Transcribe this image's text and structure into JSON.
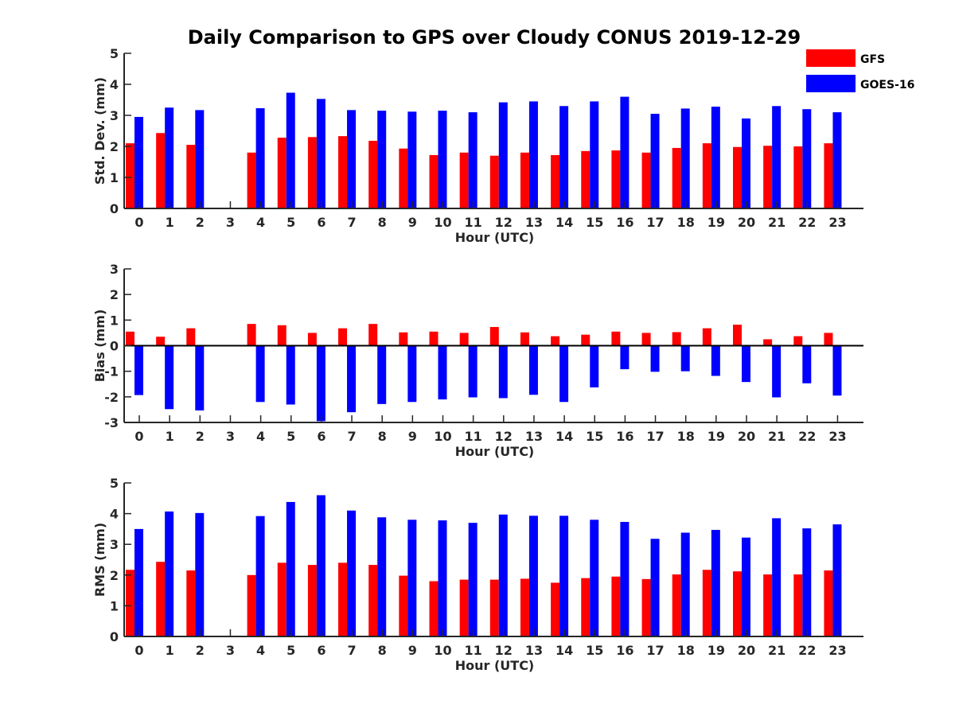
{
  "colors": {
    "gfs": "#ff0000",
    "goes": "#0000ff",
    "axis": "#262626",
    "background": "#ffffff"
  },
  "chart_data": {
    "type": "bar",
    "title": "Daily Comparison to GPS over Cloudy CONUS 2019-12-29",
    "legend": {
      "placement": "top-right",
      "entries": [
        {
          "name": "GFS",
          "color": "#ff0000"
        },
        {
          "name": "GOES-16",
          "color": "#0000ff"
        }
      ]
    },
    "categories": [
      "0",
      "1",
      "2",
      "3",
      "4",
      "5",
      "6",
      "7",
      "8",
      "9",
      "10",
      "11",
      "12",
      "13",
      "14",
      "15",
      "16",
      "17",
      "18",
      "19",
      "20",
      "21",
      "22",
      "23"
    ],
    "panels": [
      {
        "id": "std",
        "xlabel": "Hour (UTC)",
        "ylabel": "Std. Dev. (mm)",
        "ylim": [
          0,
          5
        ],
        "yticks": [
          "0",
          "1",
          "2",
          "3",
          "4",
          "5"
        ],
        "grid": false,
        "series": [
          {
            "name": "GFS",
            "values": [
              2.1,
              2.43,
              2.05,
              null,
              1.8,
              2.28,
              2.3,
              2.33,
              2.18,
              1.93,
              1.72,
              1.8,
              1.7,
              1.8,
              1.72,
              1.85,
              1.87,
              1.8,
              1.95,
              2.1,
              1.98,
              2.02,
              2.0,
              2.1
            ]
          },
          {
            "name": "GOES-16",
            "values": [
              2.95,
              3.25,
              3.17,
              null,
              3.23,
              3.73,
              3.53,
              3.17,
              3.15,
              3.12,
              3.15,
              3.1,
              3.42,
              3.45,
              3.3,
              3.45,
              3.6,
              3.05,
              3.22,
              3.28,
              2.9,
              3.3,
              3.2,
              3.1
            ]
          }
        ]
      },
      {
        "id": "bias",
        "xlabel": "Hour (UTC)",
        "ylabel": "Bias (mm)",
        "ylim": [
          -3,
          3
        ],
        "yticks": [
          "-3",
          "-2",
          "-1",
          "0",
          "1",
          "2",
          "3"
        ],
        "grid": false,
        "series": [
          {
            "name": "GFS",
            "values": [
              0.55,
              0.35,
              0.68,
              null,
              0.85,
              0.8,
              0.5,
              0.68,
              0.85,
              0.52,
              0.55,
              0.5,
              0.73,
              0.52,
              0.37,
              0.43,
              0.55,
              0.5,
              0.53,
              0.68,
              0.82,
              0.25,
              0.37,
              0.5
            ]
          },
          {
            "name": "GOES-16",
            "values": [
              -1.93,
              -2.48,
              -2.53,
              null,
              -2.2,
              -2.3,
              -2.95,
              -2.6,
              -2.28,
              -2.2,
              -2.1,
              -2.02,
              -2.05,
              -1.92,
              -2.2,
              -1.63,
              -0.92,
              -1.02,
              -1.0,
              -1.18,
              -1.42,
              -2.02,
              -1.47,
              -1.95
            ]
          }
        ]
      },
      {
        "id": "rms",
        "xlabel": "Hour (UTC)",
        "ylabel": "RMS (mm)",
        "ylim": [
          0,
          5
        ],
        "yticks": [
          "0",
          "1",
          "2",
          "3",
          "4",
          "5"
        ],
        "grid": false,
        "series": [
          {
            "name": "GFS",
            "values": [
              2.17,
              2.43,
              2.15,
              null,
              2.0,
              2.4,
              2.33,
              2.4,
              2.33,
              1.98,
              1.8,
              1.85,
              1.85,
              1.88,
              1.75,
              1.9,
              1.95,
              1.87,
              2.02,
              2.17,
              2.12,
              2.02,
              2.02,
              2.15
            ]
          },
          {
            "name": "GOES-16",
            "values": [
              3.5,
              4.07,
              4.02,
              null,
              3.92,
              4.38,
              4.6,
              4.1,
              3.88,
              3.8,
              3.78,
              3.7,
              3.97,
              3.93,
              3.93,
              3.8,
              3.73,
              3.18,
              3.38,
              3.47,
              3.22,
              3.85,
              3.52,
              3.65
            ]
          }
        ]
      }
    ]
  }
}
